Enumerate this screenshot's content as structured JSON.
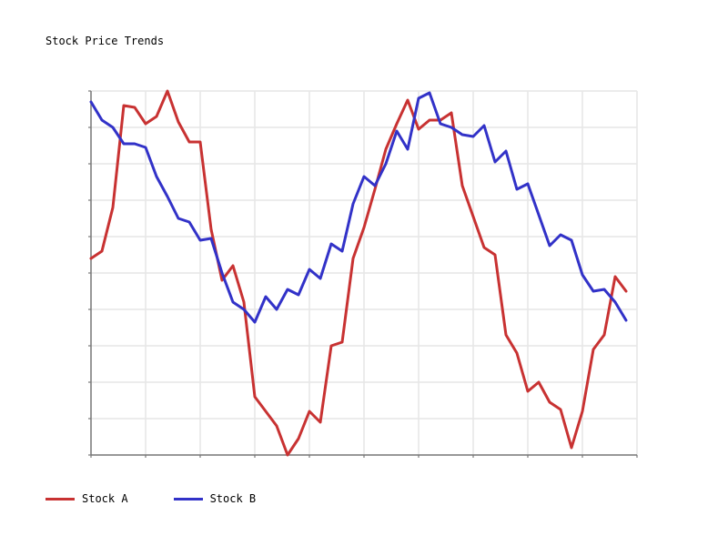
{
  "chart_data": {
    "type": "line",
    "title": "Stock Price Trends",
    "xlabel": "",
    "ylabel": "",
    "xlim": [
      0,
      50
    ],
    "ylim": [
      0,
      100
    ],
    "grid": true,
    "legend": "bottom-left",
    "series": [
      {
        "name": "Stock A",
        "color": "#c83232",
        "values": [
          54.0,
          56.0,
          68.0,
          96.0,
          95.5,
          91.0,
          93.0,
          100.0,
          91.5,
          86.0,
          86.0,
          62.0,
          48.0,
          52.0,
          42.0,
          16.0,
          12.0,
          8.0,
          0.0,
          4.5,
          12.0,
          9.0,
          30.0,
          31.0,
          54.0,
          62.5,
          73.0,
          84.0,
          91.0,
          97.5,
          89.5,
          92.0,
          92.0,
          94.0,
          74.0,
          65.5,
          57.0,
          55.0,
          33.0,
          28.0,
          17.5,
          20.0,
          14.5,
          12.5,
          2.0,
          12.0,
          29.0,
          33.0,
          49.0,
          45.0
        ],
        "x": [
          0,
          1,
          2,
          3,
          4,
          5,
          6,
          7,
          8,
          9,
          10,
          11,
          12,
          13,
          14,
          15,
          16,
          17,
          18,
          19,
          20,
          21,
          22,
          23,
          24,
          25,
          26,
          27,
          28,
          29,
          30,
          31,
          32,
          33,
          34,
          35,
          36,
          37,
          38,
          39,
          40,
          41,
          42,
          43,
          44,
          45,
          46,
          47,
          48,
          49
        ]
      },
      {
        "name": "Stock B",
        "color": "#3232c8",
        "values": [
          97.0,
          92.0,
          90.0,
          85.5,
          85.5,
          84.5,
          76.5,
          71.0,
          65.0,
          64.0,
          59.0,
          59.5,
          50.0,
          42.0,
          40.0,
          36.5,
          43.5,
          40.0,
          45.5,
          44.0,
          51.0,
          48.5,
          58.0,
          56.0,
          69.0,
          76.5,
          74.0,
          80.0,
          89.0,
          84.0,
          98.0,
          99.5,
          91.0,
          90.0,
          88.0,
          87.5,
          90.5,
          80.5,
          83.5,
          73.0,
          74.5,
          66.0,
          57.5,
          60.5,
          59.0,
          49.5,
          45.0,
          45.5,
          42.0,
          37.0
        ],
        "x": [
          0,
          1,
          2,
          3,
          4,
          5,
          6,
          7,
          8,
          9,
          10,
          11,
          12,
          13,
          14,
          15,
          16,
          17,
          18,
          19,
          20,
          21,
          22,
          23,
          24,
          25,
          26,
          27,
          28,
          29,
          30,
          31,
          32,
          33,
          34,
          35,
          36,
          37,
          38,
          39,
          40,
          41,
          42,
          43,
          44,
          45,
          46,
          47,
          48,
          49
        ]
      }
    ]
  }
}
